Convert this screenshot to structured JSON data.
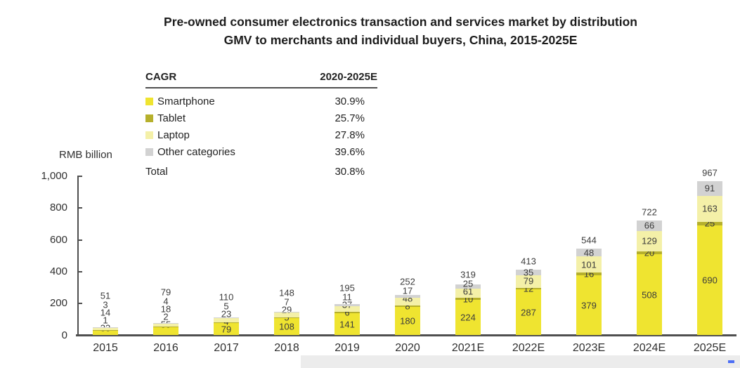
{
  "title": {
    "line1": "Pre-owned consumer electronics transaction and services market by distribution",
    "line2": "GMV to merchants and individual buyers, China, 2015-2025E"
  },
  "legend": {
    "header_metric": "CAGR",
    "header_period": "2020-2025E",
    "items": [
      {
        "label": "Smartphone",
        "cagr": "30.9%",
        "color": "#EFE430"
      },
      {
        "label": "Tablet",
        "cagr": "25.7%",
        "color": "#B6B02C"
      },
      {
        "label": "Laptop",
        "cagr": "27.8%",
        "color": "#F4F0A8"
      },
      {
        "label": "Other categories",
        "cagr": "39.6%",
        "color": "#D2D2D2"
      }
    ],
    "total": {
      "label": "Total",
      "cagr": "30.8%"
    }
  },
  "axis": {
    "unit_label": "RMB billion"
  },
  "chart_data": {
    "type": "bar",
    "stacked": true,
    "title": "Pre-owned consumer electronics transaction and services market by distribution GMV to merchants and individual buyers, China, 2015-2025E",
    "ylabel": "RMB billion",
    "ylim": [
      0,
      1000
    ],
    "y_ticks": [
      0,
      200,
      400,
      600,
      800,
      1000
    ],
    "y_tick_labels": [
      "0",
      "200",
      "400",
      "600",
      "800",
      "1,000"
    ],
    "categories": [
      "2015",
      "2016",
      "2017",
      "2018",
      "2019",
      "2020",
      "2021E",
      "2022E",
      "2023E",
      "2024E",
      "2025E"
    ],
    "series": [
      {
        "name": "Smartphone",
        "color": "#EFE430",
        "values": [
          33,
          55,
          79,
          108,
          141,
          180,
          224,
          287,
          379,
          508,
          690
        ]
      },
      {
        "name": "Tablet",
        "color": "#B6B02C",
        "values": [
          1,
          2,
          4,
          5,
          6,
          8,
          10,
          12,
          16,
          20,
          25
        ]
      },
      {
        "name": "Laptop",
        "color": "#F4F0A8",
        "values": [
          14,
          18,
          23,
          29,
          37,
          48,
          61,
          79,
          101,
          129,
          163
        ]
      },
      {
        "name": "Other categories",
        "color": "#D2D2D2",
        "values": [
          3,
          4,
          5,
          7,
          11,
          17,
          25,
          35,
          48,
          66,
          91
        ]
      }
    ],
    "totals": [
      51,
      79,
      110,
      148,
      195,
      252,
      319,
      413,
      544,
      722,
      967
    ],
    "stack_order": "bottom-to-top",
    "legend_position": "top-left",
    "grid": false
  }
}
